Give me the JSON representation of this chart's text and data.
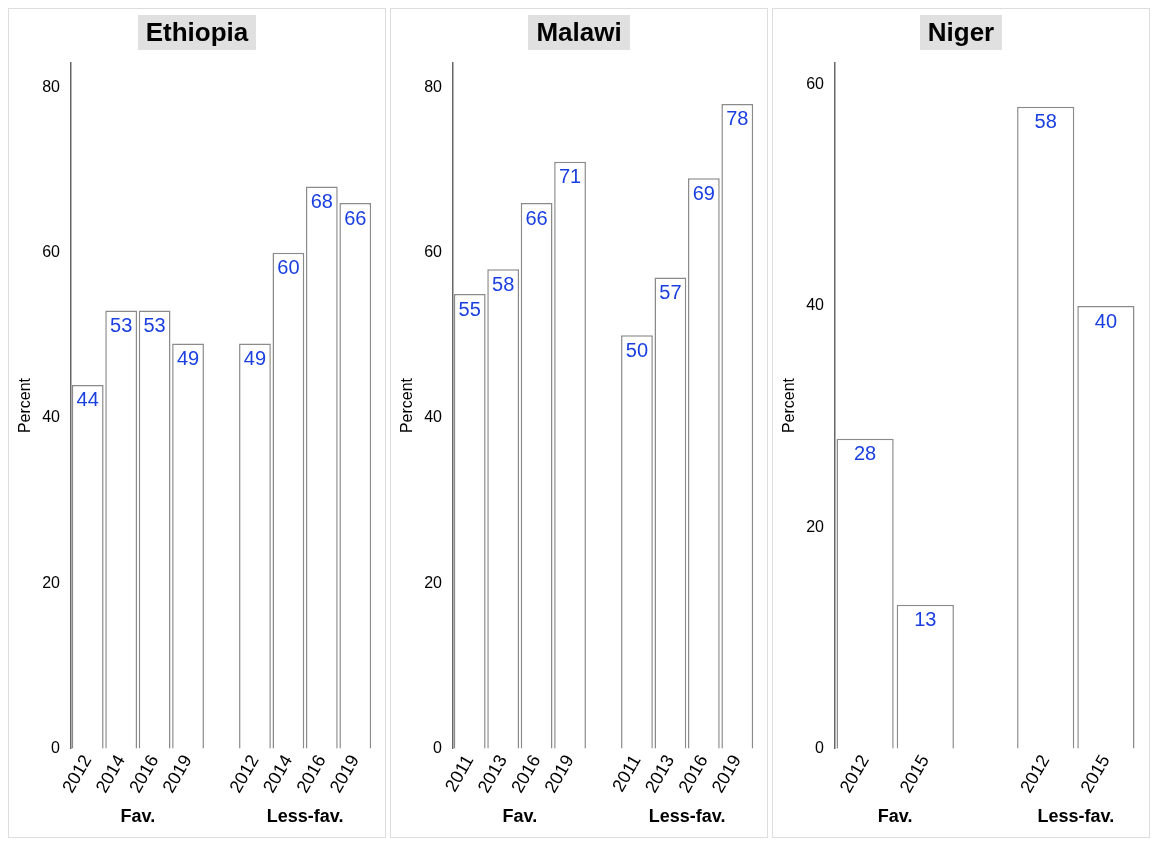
{
  "chart_data": [
    {
      "type": "bar",
      "title": "Ethiopia",
      "ylabel": "Percent",
      "categories": [
        "2012",
        "2014",
        "2016",
        "2019",
        null,
        "2012",
        "2014",
        "2016",
        "2019"
      ],
      "values": [
        44,
        53,
        53,
        49,
        null,
        49,
        60,
        68,
        66
      ],
      "color": "#ffffff",
      "ylim": [
        0,
        83
      ],
      "yticks": [
        0,
        20,
        40,
        60,
        80
      ],
      "grid": false,
      "data_labels": true,
      "annotations": [
        "Fav.",
        "Less-fav."
      ]
    },
    {
      "type": "bar",
      "title": "Malawi",
      "ylabel": "Percent",
      "categories": [
        "2011",
        "2013",
        "2016",
        "2019",
        null,
        "2011",
        "2013",
        "2016",
        "2019"
      ],
      "values": [
        55,
        58,
        66,
        71,
        null,
        50,
        57,
        69,
        78
      ],
      "color": "#ffffff",
      "ylim": [
        0,
        83
      ],
      "yticks": [
        0,
        20,
        40,
        60,
        80
      ],
      "grid": false,
      "data_labels": true,
      "annotations": [
        "Fav.",
        "Less-fav."
      ]
    },
    {
      "type": "bar",
      "title": "Niger",
      "ylabel": "Percent",
      "categories": [
        "2012",
        "2015",
        null,
        "2012",
        "2015"
      ],
      "values": [
        28,
        13,
        null,
        58,
        40
      ],
      "color": "#ffffff",
      "ylim": [
        0,
        62
      ],
      "yticks": [
        0,
        20,
        40,
        60
      ],
      "grid": false,
      "data_labels": true,
      "annotations": [
        "Fav.",
        "Less-fav."
      ]
    }
  ]
}
